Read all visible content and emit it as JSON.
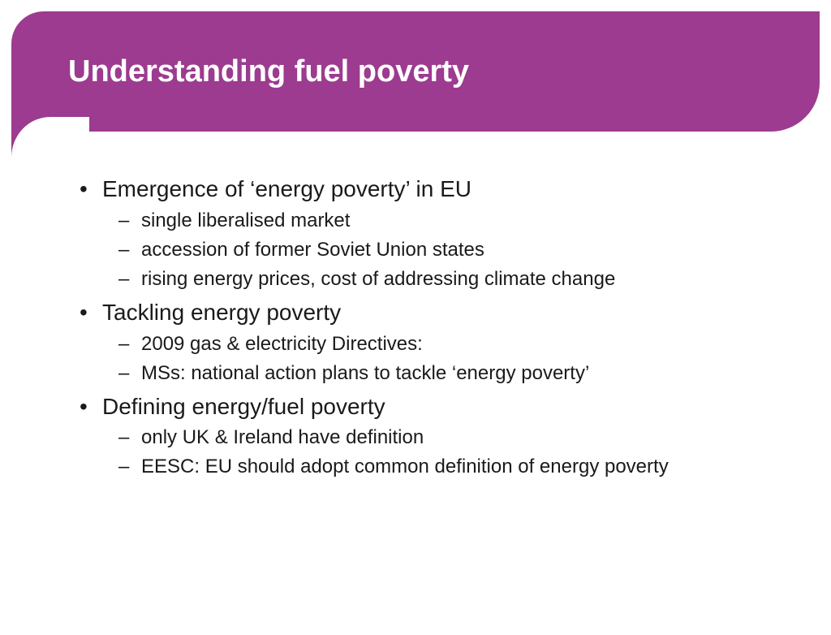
{
  "slide": {
    "title": "Understanding fuel poverty",
    "header_bg": "#9c3b8f",
    "title_color": "#ffffff",
    "title_fontsize": 38,
    "body_color": "#1a1a1a",
    "main_fontsize": 28,
    "sub_fontsize": 24,
    "background": "#ffffff",
    "bullets": [
      {
        "text": "Emergence of ‘energy poverty’ in EU",
        "sub": [
          "single liberalised market",
          "accession of former Soviet Union states",
          "rising energy prices, cost of addressing climate change"
        ]
      },
      {
        "text": "Tackling energy poverty",
        "sub": [
          "2009 gas & electricity Directives:",
          "MSs: national action plans to tackle ‘energy poverty’"
        ]
      },
      {
        "text": "Defining energy/fuel poverty",
        "sub": [
          "only UK & Ireland have definition",
          "EESC: EU should adopt common definition of energy poverty"
        ]
      }
    ]
  }
}
